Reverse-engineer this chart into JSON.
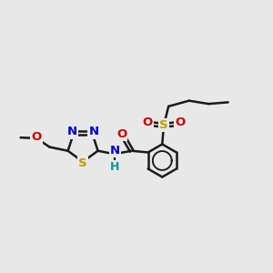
{
  "bg_color": "#e8e8e8",
  "bond_color": "#1a1a1a",
  "line_width": 1.8,
  "S_color": "#b8a000",
  "N_color": "#0000cc",
  "O_color": "#cc0000",
  "H_color": "#009999",
  "font_size": 9.5,
  "fig_width": 3.0,
  "fig_height": 3.0,
  "dpi": 100,
  "xlim": [
    0.0,
    8.5
  ],
  "ylim": [
    0.5,
    5.5
  ]
}
